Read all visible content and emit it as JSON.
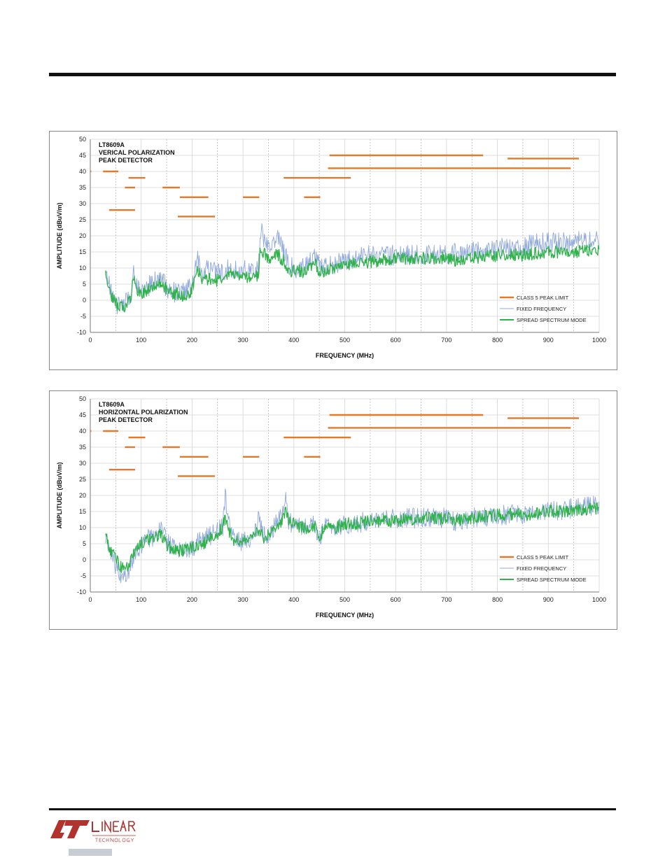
{
  "chart_data": [
    {
      "type": "line",
      "title": "LT8609A\nVERICAL POLARIZATION\nPEAK DETECTOR",
      "xlabel": "FREQUENCY (MHz)",
      "ylabel": "AMPLITUDE (dBuV/m)",
      "xlim": [
        0,
        1000
      ],
      "ylim": [
        -10,
        50
      ],
      "xticks": [
        "0",
        "100",
        "200",
        "300",
        "400",
        "500",
        "600",
        "700",
        "800",
        "900",
        "1000"
      ],
      "yticks": [
        "-10",
        "-5",
        "0",
        "5",
        "10",
        "15",
        "20",
        "25",
        "30",
        "35",
        "40",
        "45",
        "50"
      ],
      "grid": true,
      "legend_position": "bottom-right",
      "legend": [
        "CLASS 5 PEAK LIMIT",
        "FIXED FREQUENCY",
        "SPREAD SPECTRUM MODE"
      ],
      "limit_segments": [
        {
          "x": [
            0,
            2
          ],
          "y": 40
        },
        {
          "x": [
            25,
            55
          ],
          "y": 40
        },
        {
          "x": [
            37,
            88
          ],
          "y": 28
        },
        {
          "x": [
            75,
            108
          ],
          "y": 38
        },
        {
          "x": [
            68,
            88
          ],
          "y": 35
        },
        {
          "x": [
            142,
            176
          ],
          "y": 35
        },
        {
          "x": [
            176,
            232
          ],
          "y": 32
        },
        {
          "x": [
            172,
            245
          ],
          "y": 26
        },
        {
          "x": [
            300,
            332
          ],
          "y": 32
        },
        {
          "x": [
            380,
            512
          ],
          "y": 38
        },
        {
          "x": [
            420,
            452
          ],
          "y": 32
        },
        {
          "x": [
            470,
            772
          ],
          "y": 45
        },
        {
          "x": [
            467,
            944
          ],
          "y": 41
        },
        {
          "x": [
            820,
            960
          ],
          "y": 44
        }
      ],
      "series": [
        {
          "name": "FIXED FREQUENCY",
          "color": "#8ea8dc",
          "x": [
            30,
            40,
            50,
            60,
            70,
            80,
            85,
            90,
            100,
            110,
            120,
            130,
            140,
            150,
            160,
            170,
            180,
            190,
            200,
            205,
            210,
            220,
            230,
            240,
            250,
            260,
            270,
            280,
            290,
            300,
            310,
            320,
            330,
            335,
            340,
            350,
            360,
            370,
            380,
            390,
            400,
            410,
            420,
            430,
            440,
            450,
            460,
            480,
            500,
            550,
            600,
            650,
            700,
            720,
            750,
            800,
            850,
            900,
            950,
            1000
          ],
          "y": [
            10,
            3,
            -1,
            -2,
            -1,
            2,
            9,
            5,
            3,
            4,
            5,
            6,
            6,
            4,
            3,
            2,
            2,
            3,
            4,
            8,
            13,
            9,
            10,
            9,
            8,
            9,
            10,
            9,
            9,
            10,
            9,
            9,
            10,
            22,
            20,
            16,
            18,
            19,
            16,
            11,
            10,
            10,
            11,
            11,
            14,
            11,
            10,
            11,
            12,
            14,
            14,
            14,
            14,
            15,
            15,
            16,
            17,
            18,
            18,
            19
          ]
        },
        {
          "name": "SPREAD SPECTRUM MODE",
          "color": "#2fb24a",
          "x": [
            30,
            40,
            50,
            60,
            70,
            80,
            85,
            90,
            100,
            110,
            120,
            130,
            140,
            150,
            160,
            170,
            180,
            190,
            200,
            205,
            210,
            220,
            230,
            240,
            250,
            260,
            270,
            280,
            290,
            300,
            310,
            320,
            330,
            335,
            340,
            350,
            360,
            370,
            380,
            390,
            400,
            410,
            420,
            430,
            440,
            450,
            460,
            480,
            500,
            550,
            600,
            650,
            700,
            720,
            750,
            800,
            850,
            900,
            950,
            1000
          ],
          "y": [
            9,
            2,
            -1,
            -2,
            -2,
            1,
            7,
            4,
            2,
            3,
            4,
            5,
            5,
            3,
            2,
            2,
            1,
            2,
            3,
            6,
            10,
            7,
            6,
            7,
            6,
            7,
            8,
            8,
            7,
            8,
            7,
            7,
            8,
            17,
            15,
            13,
            14,
            14,
            12,
            9,
            9,
            9,
            9,
            10,
            12,
            9,
            9,
            10,
            11,
            12,
            13,
            13,
            13,
            12,
            13,
            14,
            14,
            15,
            15,
            16
          ]
        }
      ]
    },
    {
      "type": "line",
      "title": "LT8609A\nHORIZONTAL POLARIZATION\nPEAK DETECTOR",
      "xlabel": "FREQUENCY (MHz)",
      "ylabel": "AMPLITUDE (dBuV/m)",
      "xlim": [
        0,
        1000
      ],
      "ylim": [
        -10,
        50
      ],
      "xticks": [
        "0",
        "100",
        "200",
        "300",
        "400",
        "500",
        "600",
        "700",
        "800",
        "900",
        "1000"
      ],
      "yticks": [
        "-10",
        "-5",
        "0",
        "5",
        "10",
        "15",
        "20",
        "25",
        "30",
        "35",
        "40",
        "45",
        "50"
      ],
      "grid": true,
      "legend_position": "bottom-right",
      "legend": [
        "CLASS 5 PEAK LIMIT",
        "FIXED FREQUENCY",
        "SPREAD SPECTRUM MODE"
      ],
      "limit_segments": [
        {
          "x": [
            0,
            2
          ],
          "y": 40
        },
        {
          "x": [
            25,
            55
          ],
          "y": 40
        },
        {
          "x": [
            37,
            88
          ],
          "y": 28
        },
        {
          "x": [
            75,
            108
          ],
          "y": 38
        },
        {
          "x": [
            68,
            88
          ],
          "y": 35
        },
        {
          "x": [
            142,
            176
          ],
          "y": 35
        },
        {
          "x": [
            176,
            232
          ],
          "y": 32
        },
        {
          "x": [
            172,
            245
          ],
          "y": 26
        },
        {
          "x": [
            300,
            332
          ],
          "y": 32
        },
        {
          "x": [
            380,
            512
          ],
          "y": 38
        },
        {
          "x": [
            420,
            452
          ],
          "y": 32
        },
        {
          "x": [
            470,
            772
          ],
          "y": 45
        },
        {
          "x": [
            467,
            944
          ],
          "y": 41
        },
        {
          "x": [
            820,
            960
          ],
          "y": 44
        }
      ],
      "series": [
        {
          "name": "FIXED FREQUENCY",
          "color": "#8ea8dc",
          "x": [
            30,
            40,
            50,
            60,
            70,
            80,
            90,
            100,
            110,
            120,
            130,
            140,
            150,
            160,
            170,
            180,
            190,
            200,
            210,
            220,
            230,
            240,
            250,
            260,
            265,
            270,
            280,
            290,
            300,
            310,
            320,
            330,
            340,
            350,
            360,
            370,
            380,
            385,
            390,
            400,
            410,
            420,
            430,
            440,
            450,
            460,
            480,
            500,
            550,
            600,
            650,
            700,
            720,
            750,
            800,
            850,
            900,
            950,
            1000
          ],
          "y": [
            7,
            2,
            -2,
            -4,
            -5,
            -2,
            3,
            5,
            6,
            7,
            8,
            9,
            6,
            4,
            3,
            3,
            3,
            4,
            5,
            6,
            7,
            8,
            9,
            10,
            20,
            12,
            7,
            6,
            6,
            7,
            7,
            12,
            8,
            8,
            10,
            12,
            14,
            20,
            12,
            11,
            10,
            11,
            11,
            12,
            6,
            10,
            10,
            11,
            12,
            13,
            13,
            13,
            12,
            13,
            14,
            14,
            15,
            16,
            17
          ]
        },
        {
          "name": "SPREAD SPECTRUM MODE",
          "color": "#2fb24a",
          "x": [
            30,
            40,
            50,
            60,
            70,
            80,
            90,
            100,
            110,
            120,
            130,
            140,
            150,
            160,
            170,
            180,
            190,
            200,
            210,
            220,
            230,
            240,
            250,
            260,
            265,
            270,
            280,
            290,
            300,
            310,
            320,
            330,
            340,
            350,
            360,
            370,
            380,
            385,
            390,
            400,
            410,
            420,
            430,
            440,
            450,
            460,
            480,
            500,
            550,
            600,
            650,
            700,
            720,
            750,
            800,
            850,
            900,
            950,
            1000
          ],
          "y": [
            7,
            3,
            0,
            -2,
            -3,
            0,
            4,
            5,
            6,
            7,
            7,
            8,
            5,
            3,
            3,
            3,
            3,
            4,
            4,
            5,
            6,
            7,
            8,
            10,
            14,
            10,
            6,
            6,
            6,
            7,
            7,
            9,
            7,
            8,
            9,
            11,
            13,
            16,
            12,
            11,
            10,
            10,
            10,
            11,
            7,
            10,
            10,
            11,
            12,
            12,
            13,
            13,
            12,
            13,
            14,
            14,
            15,
            15,
            16
          ]
        }
      ]
    }
  ]
}
